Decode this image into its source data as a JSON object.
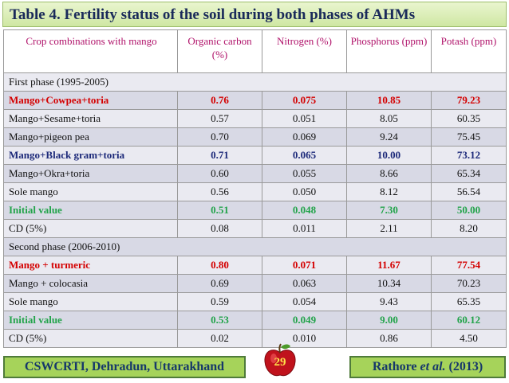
{
  "title": "Table 4. Fertility status of the soil during both phases of AHMs",
  "headers": [
    "Crop combinations with mango",
    "Organic carbon (%)",
    "Nitrogen (%)",
    "Phosphorus (ppm)",
    "Potash (ppm)"
  ],
  "rows": [
    {
      "cells": [
        "First phase  (1995-2005)"
      ],
      "kind": "phase"
    },
    {
      "cells": [
        "Mango+Cowpea+toria",
        "0.76",
        "0.075",
        "10.85",
        "79.23"
      ],
      "kind": "hl-red"
    },
    {
      "cells": [
        "Mango+Sesame+toria",
        "0.57",
        "0.051",
        "8.05",
        "60.35"
      ],
      "kind": "normal"
    },
    {
      "cells": [
        "Mango+pigeon pea",
        "0.70",
        "0.069",
        "9.24",
        "75.45"
      ],
      "kind": "normal"
    },
    {
      "cells": [
        "Mango+Black gram+toria",
        "0.71",
        "0.065",
        "10.00",
        "73.12"
      ],
      "kind": "hl-blue"
    },
    {
      "cells": [
        "Mango+Okra+toria",
        "0.60",
        "0.055",
        "8.66",
        "65.34"
      ],
      "kind": "normal"
    },
    {
      "cells": [
        "Sole mango",
        "0.56",
        "0.050",
        "8.12",
        "56.54"
      ],
      "kind": "normal"
    },
    {
      "cells": [
        "Initial value",
        "0.51",
        "0.048",
        "7.30",
        "50.00"
      ],
      "kind": "hl-green"
    },
    {
      "cells": [
        "CD (5%)",
        "0.08",
        "0.011",
        "2.11",
        "8.20"
      ],
      "kind": "normal"
    },
    {
      "cells": [
        "Second phase (2006-2010)"
      ],
      "kind": "phase"
    },
    {
      "cells": [
        "Mango + turmeric",
        "0.80",
        "0.071",
        "11.67",
        "77.54"
      ],
      "kind": "hl-red"
    },
    {
      "cells": [
        "Mango + colocasia",
        "0.69",
        "0.063",
        "10.34",
        "70.23"
      ],
      "kind": "normal"
    },
    {
      "cells": [
        "Sole mango",
        "0.59",
        "0.054",
        "9.43",
        "65.35"
      ],
      "kind": "normal"
    },
    {
      "cells": [
        "Initial value",
        "0.53",
        "0.049",
        "9.00",
        "60.12"
      ],
      "kind": "hl-green"
    },
    {
      "cells": [
        "CD (5%)",
        "0.02",
        "0.010",
        "0.86",
        "4.50"
      ],
      "kind": "normal"
    }
  ],
  "footer": {
    "institute": "CSWCRTI, Dehradun, Uttarakhand",
    "citation_author": "Rathore ",
    "citation_etal": "et al.",
    "citation_year": " (2013)",
    "page_number": "29"
  },
  "colors": {
    "highlight_red": "#d40000",
    "highlight_blue": "#1d2a7a",
    "highlight_green": "#22a34a",
    "header_text": "#b0126a",
    "footer_bg": "#a6d35a"
  },
  "icons": {
    "page_badge": "apple-icon"
  }
}
